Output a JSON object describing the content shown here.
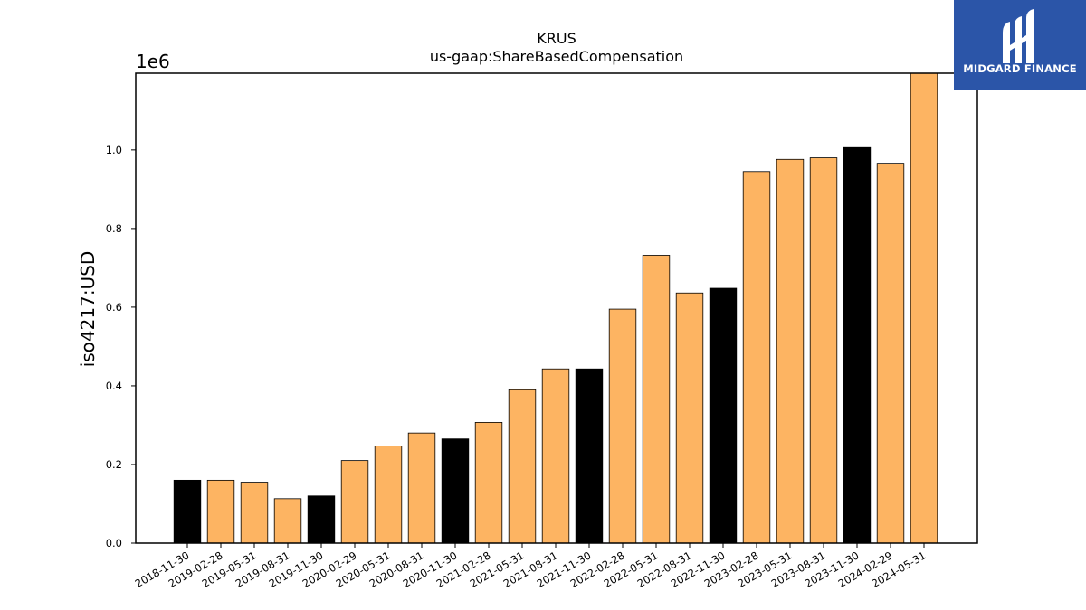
{
  "brand": {
    "name": "MIDGARD FINANCE",
    "bg_color": "#2b55a8"
  },
  "chart_data": {
    "type": "bar",
    "title": "KRUS",
    "subtitle": "us-gaap:ShareBasedCompensation",
    "ylabel": "iso4217:USD",
    "xlabel": "",
    "scale_label": "1e6",
    "ylim": [
      0,
      1195000
    ],
    "yticks": [
      0.0,
      0.2,
      0.4,
      0.6,
      0.8,
      1.0
    ],
    "ytick_labels": [
      "0.0",
      "0.2",
      "0.4",
      "0.6",
      "0.8",
      "1.0"
    ],
    "grid": false,
    "legend": "none",
    "colors": {
      "default": "#fdb462",
      "highlight": "#000000"
    },
    "categories": [
      "2018-11-30",
      "2019-02-28",
      "2019-05-31",
      "2019-08-31",
      "2019-11-30",
      "2020-02-29",
      "2020-05-31",
      "2020-08-31",
      "2020-11-30",
      "2021-02-28",
      "2021-05-31",
      "2021-08-31",
      "2021-11-30",
      "2022-02-28",
      "2022-05-31",
      "2022-08-31",
      "2022-11-30",
      "2023-02-28",
      "2023-05-31",
      "2023-08-31",
      "2023-11-30",
      "2024-02-29",
      "2024-05-31"
    ],
    "values": [
      160000,
      160000,
      155000,
      113000,
      120000,
      210000,
      247000,
      280000,
      265000,
      307000,
      390000,
      443000,
      443000,
      595000,
      732000,
      636000,
      648000,
      945000,
      976000,
      980000,
      1006000,
      966000,
      1196000
    ],
    "highlight": [
      true,
      false,
      false,
      false,
      true,
      false,
      false,
      false,
      true,
      false,
      false,
      false,
      true,
      false,
      false,
      false,
      true,
      false,
      false,
      false,
      true,
      false,
      false
    ]
  }
}
